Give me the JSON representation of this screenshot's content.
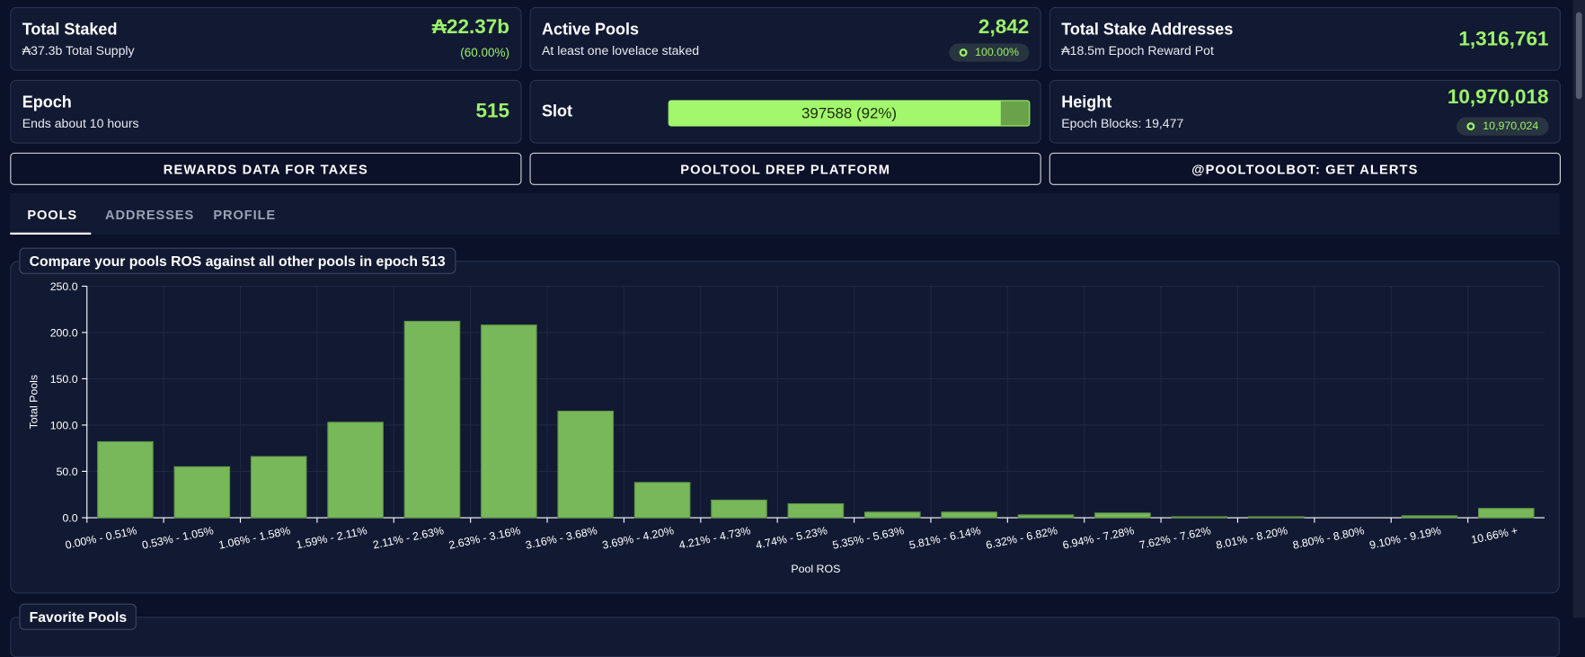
{
  "stats": [
    {
      "title": "Total Staked",
      "subtitle": "₳37.3b Total Supply",
      "value": "₳22.37b",
      "extra": "(60.00%)"
    },
    {
      "title": "Active Pools",
      "subtitle": "At least one lovelace staked",
      "value": "2,842",
      "badge": "100.00%"
    },
    {
      "title": "Total Stake Addresses",
      "subtitle": "₳18.5m Epoch Reward Pot",
      "value": "1,316,761"
    },
    {
      "title": "Epoch",
      "subtitle": "Ends about 10 hours",
      "value": "515"
    },
    {
      "title": "Slot",
      "progress": "397588 (92%)"
    },
    {
      "title": "Height",
      "subtitle": "Epoch Blocks: 19,477",
      "value": "10,970,018",
      "badge": "10,970,024"
    }
  ],
  "buttons": [
    "REWARDS DATA FOR TAXES",
    "POOLTOOL DREP PLATFORM",
    "@POOLTOOLBOT: GET ALERTS"
  ],
  "tabs": [
    "POOLS",
    "ADDRESSES",
    "PROFILE"
  ],
  "next_panel": "Favorite Pools",
  "chart_data": {
    "type": "bar",
    "title": "Compare your pools ROS against all other pools in epoch 513",
    "x_label": "Pool ROS",
    "y_label": "Total Pools",
    "categories": [
      "0.00% - 0.51%",
      "0.53% - 1.05%",
      "1.06% - 1.58%",
      "1.59% - 2.11%",
      "2.11% - 2.63%",
      "2.63% - 3.16%",
      "3.16% - 3.68%",
      "3.69% - 4.20%",
      "4.21% - 4.73%",
      "4.74% - 5.23%",
      "5.35% - 5.63%",
      "5.81% - 6.14%",
      "6.32% - 6.82%",
      "6.94% - 7.28%",
      "7.62% - 7.62%",
      "8.01% - 8.20%",
      "8.80% - 8.80%",
      "9.10% - 9.19%",
      "10.66% +"
    ],
    "values": [
      82,
      55,
      66,
      103,
      212,
      208,
      115,
      38,
      19,
      15,
      6,
      6,
      3,
      5,
      1,
      1,
      0,
      2,
      10
    ],
    "color": "#78b85a",
    "ylim": [
      0,
      250
    ],
    "yticks": [
      {
        "value": 0,
        "label": "0.0"
      },
      {
        "value": 50,
        "label": "50.0"
      },
      {
        "value": 100,
        "label": "100.0"
      },
      {
        "value": 150,
        "label": "150.0"
      },
      {
        "value": 200,
        "label": "200.0"
      },
      {
        "value": 250,
        "label": "250.0"
      }
    ],
    "grid": true
  }
}
